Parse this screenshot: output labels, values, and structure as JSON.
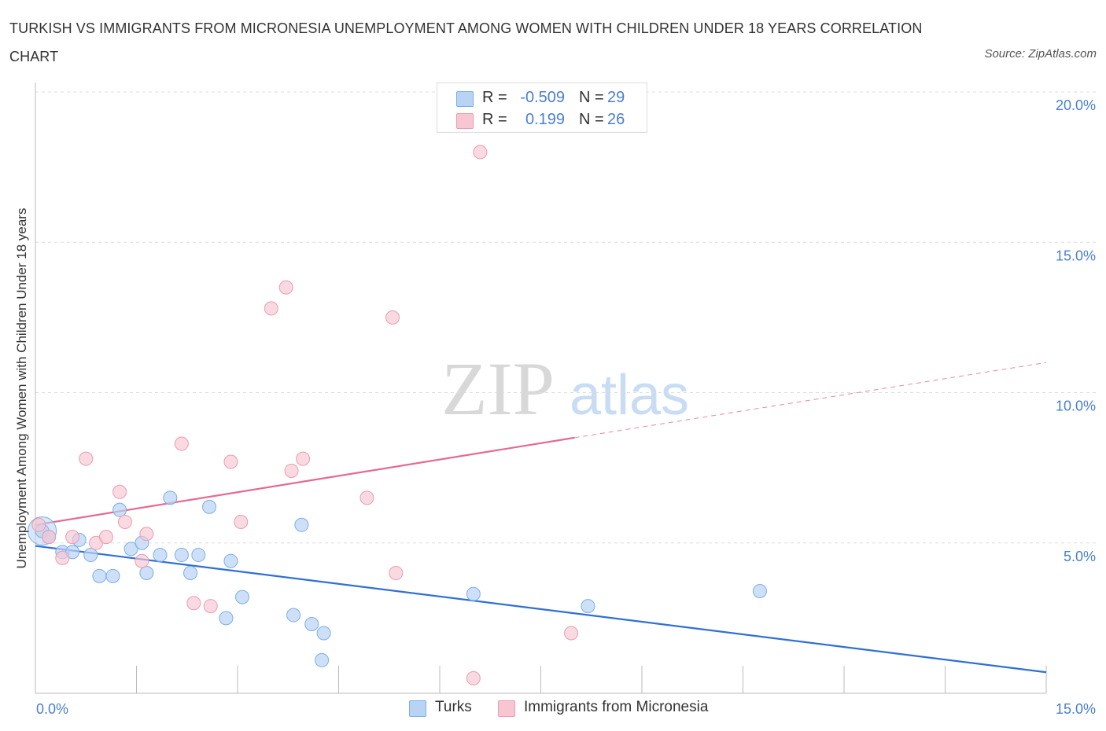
{
  "title": "TURKISH VS IMMIGRANTS FROM MICRONESIA UNEMPLOYMENT AMONG WOMEN WITH CHILDREN UNDER 18 YEARS CORRELATION CHART",
  "source": "Source: ZipAtlas.com",
  "watermark": {
    "zip": "ZIP",
    "atlas": "atlas"
  },
  "colors": {
    "turks_fill": "#b9d3f5",
    "turks_stroke": "#7aaee8",
    "turks_line": "#2f6fd6",
    "micro_fill": "#f8c6d3",
    "micro_stroke": "#ee9ab0",
    "micro_line": "#e46a92",
    "axis_text": "#4a7fd0",
    "grid": "#dddddd"
  },
  "legend": {
    "rows": [
      {
        "r_label": "R =",
        "r_value": "-0.509",
        "n_label": "N =",
        "n_value": "29"
      },
      {
        "r_label": "R =",
        "r_value": "0.199",
        "n_label": "N =",
        "n_value": "26"
      }
    ]
  },
  "bottom_legend": {
    "turks": "Turks",
    "micro": "Immigrants from Micronesia"
  },
  "chart_data": {
    "type": "scatter",
    "xlabel": "",
    "ylabel": "Unemployment Among Women with Children Under 18 years",
    "xlim": [
      0,
      15
    ],
    "ylim": [
      0,
      20
    ],
    "x_ticks": [
      {
        "value": 0,
        "label": "0.0%"
      },
      {
        "value": 15,
        "label": "15.0%"
      }
    ],
    "y_ticks": [
      {
        "value": 5,
        "label": "5.0%"
      },
      {
        "value": 10,
        "label": "10.0%"
      },
      {
        "value": 15,
        "label": "15.0%"
      },
      {
        "value": 20,
        "label": "20.0%"
      }
    ],
    "grid": true,
    "series": [
      {
        "name": "Turks",
        "points": [
          [
            0.1,
            5.4
          ],
          [
            0.2,
            5.2
          ],
          [
            0.4,
            4.7
          ],
          [
            0.55,
            4.7
          ],
          [
            0.65,
            5.1
          ],
          [
            0.82,
            4.6
          ],
          [
            0.95,
            3.9
          ],
          [
            1.15,
            3.9
          ],
          [
            1.25,
            6.1
          ],
          [
            1.42,
            4.8
          ],
          [
            1.58,
            5.0
          ],
          [
            1.65,
            4.0
          ],
          [
            1.85,
            4.6
          ],
          [
            2.0,
            6.5
          ],
          [
            2.17,
            4.6
          ],
          [
            2.3,
            4.0
          ],
          [
            2.42,
            4.6
          ],
          [
            2.58,
            6.2
          ],
          [
            2.83,
            2.5
          ],
          [
            2.9,
            4.4
          ],
          [
            3.07,
            3.2
          ],
          [
            3.83,
            2.6
          ],
          [
            3.95,
            5.6
          ],
          [
            4.1,
            2.3
          ],
          [
            4.28,
            2.0
          ],
          [
            4.25,
            1.1
          ],
          [
            6.5,
            3.3
          ],
          [
            8.2,
            2.9
          ],
          [
            10.75,
            3.4
          ]
        ],
        "trend": {
          "x": [
            0,
            15
          ],
          "y": [
            4.9,
            0.7
          ]
        }
      },
      {
        "name": "Immigrants from Micronesia",
        "points": [
          [
            0.05,
            5.6
          ],
          [
            0.2,
            5.2
          ],
          [
            0.4,
            4.5
          ],
          [
            0.55,
            5.2
          ],
          [
            0.75,
            7.8
          ],
          [
            0.9,
            5.0
          ],
          [
            1.05,
            5.2
          ],
          [
            1.25,
            6.7
          ],
          [
            1.33,
            5.7
          ],
          [
            1.58,
            4.4
          ],
          [
            1.65,
            5.3
          ],
          [
            2.17,
            8.3
          ],
          [
            2.35,
            3.0
          ],
          [
            2.6,
            2.9
          ],
          [
            2.9,
            7.7
          ],
          [
            3.05,
            5.7
          ],
          [
            3.5,
            12.8
          ],
          [
            3.72,
            13.5
          ],
          [
            3.8,
            7.4
          ],
          [
            3.97,
            7.8
          ],
          [
            4.92,
            6.5
          ],
          [
            5.3,
            12.5
          ],
          [
            5.35,
            4.0
          ],
          [
            6.5,
            0.5
          ],
          [
            6.6,
            18.0
          ],
          [
            7.95,
            2.0
          ]
        ],
        "trend": {
          "x": [
            0,
            8.0
          ],
          "y": [
            5.6,
            8.5
          ]
        },
        "trend_extrapolated": {
          "x": [
            8.0,
            15
          ],
          "y": [
            8.5,
            11.0
          ]
        }
      }
    ]
  }
}
